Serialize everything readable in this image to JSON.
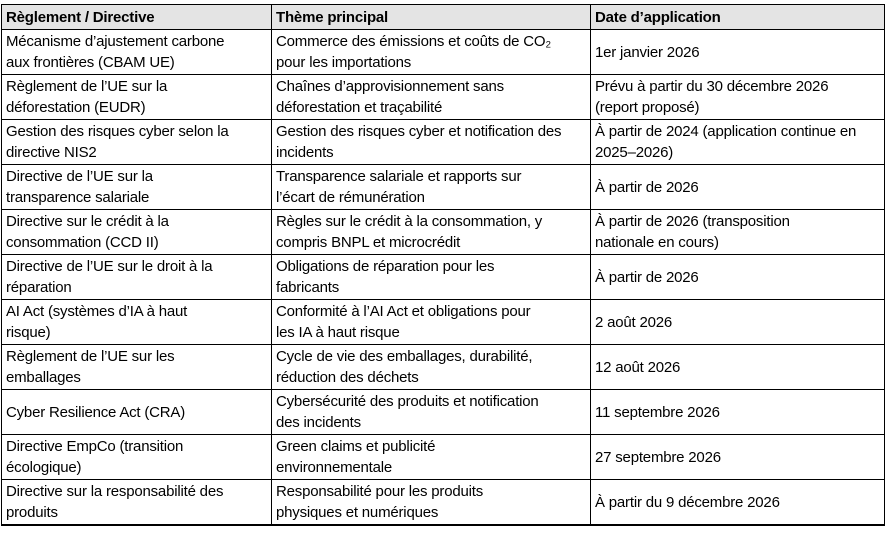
{
  "table": {
    "columns": [
      "Règlement / Directive",
      "Thème principal",
      "Date d’application"
    ],
    "rows": [
      [
        "Mécanisme d’ajustement carbone\naux frontières (CBAM UE)",
        "Commerce des émissions et coûts de CO₂\npour les importations",
        "1er janvier 2026"
      ],
      [
        "Règlement de l’UE sur la\ndéforestation (EUDR)",
        "Chaînes d’approvisionnement sans\ndéforestation et traçabilité",
        "Prévu à partir du 30 décembre 2026\n(report proposé)"
      ],
      [
        "Gestion des risques cyber selon la\ndirective NIS2",
        "Gestion des risques cyber et notification des\nincidents",
        "À partir de 2024 (application continue en\n2025–2026)"
      ],
      [
        "Directive de l’UE sur la\ntransparence salariale",
        "Transparence salariale et rapports sur\nl’écart de rémunération",
        "À partir de 2026"
      ],
      [
        "Directive sur le crédit à la\nconsommation (CCD II)",
        "Règles sur le crédit à la consommation, y\ncompris BNPL et microcrédit",
        "À partir de 2026 (transposition\nnationale en cours)"
      ],
      [
        "Directive de l’UE sur le droit à la\nréparation",
        "Obligations de réparation pour les\nfabricants",
        "À partir de 2026"
      ],
      [
        "AI Act (systèmes d’IA à haut\nrisque)",
        "Conformité à l’AI Act et obligations pour\nles IA à haut risque",
        "2 août 2026"
      ],
      [
        "Règlement de l’UE sur les\nemballages",
        "Cycle de vie des emballages, durabilité,\nréduction des déchets",
        "12 août 2026"
      ],
      [
        "Cyber Resilience Act (CRA)",
        "Cybersécurité des produits et notification\ndes incidents",
        "11 septembre 2026"
      ],
      [
        "Directive EmpCo (transition\nécologique)",
        "Green claims et publicité\nenvironnementale",
        "27 septembre 2026"
      ],
      [
        "Directive sur la responsabilité des\nproduits",
        "Responsabilité pour les produits\nphysiques et numériques",
        "À partir du 9 décembre 2026"
      ]
    ]
  },
  "colors": {
    "header_bg": "#e4e4e4",
    "border": "#000000",
    "text": "#000000",
    "background": "#ffffff"
  }
}
